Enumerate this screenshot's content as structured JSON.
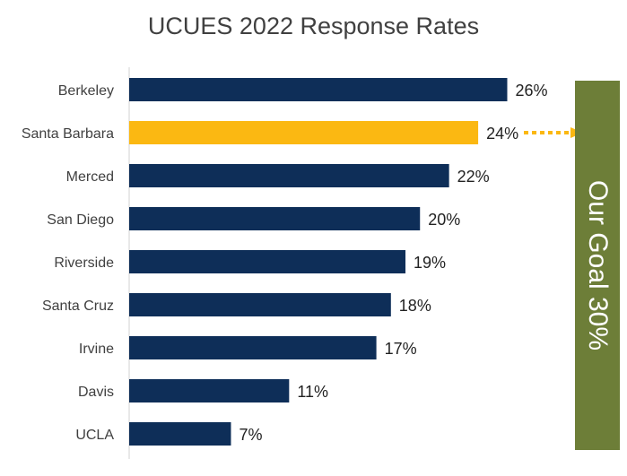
{
  "chart_data": {
    "type": "bar",
    "orientation": "horizontal",
    "title": "UCUES 2022 Response Rates",
    "xlabel": "",
    "ylabel": "",
    "xlim": [
      0,
      30
    ],
    "grid": false,
    "categories": [
      "Berkeley",
      "Santa Barbara",
      "Merced",
      "San Diego",
      "Riverside",
      "Santa Cruz",
      "Irvine",
      "Davis",
      "UCLA"
    ],
    "values": [
      26,
      24,
      22,
      20,
      19,
      18,
      17,
      11,
      7
    ],
    "value_labels": [
      "26%",
      "24%",
      "22%",
      "20%",
      "19%",
      "18%",
      "17%",
      "11%",
      "7%"
    ],
    "highlight_category": "Santa Barbara",
    "colors": {
      "default": "#0e2e58",
      "highlight": "#fbb812",
      "goal": "#6d7e38"
    },
    "goal": {
      "label": "Our Goal 30%",
      "value": 30
    }
  }
}
